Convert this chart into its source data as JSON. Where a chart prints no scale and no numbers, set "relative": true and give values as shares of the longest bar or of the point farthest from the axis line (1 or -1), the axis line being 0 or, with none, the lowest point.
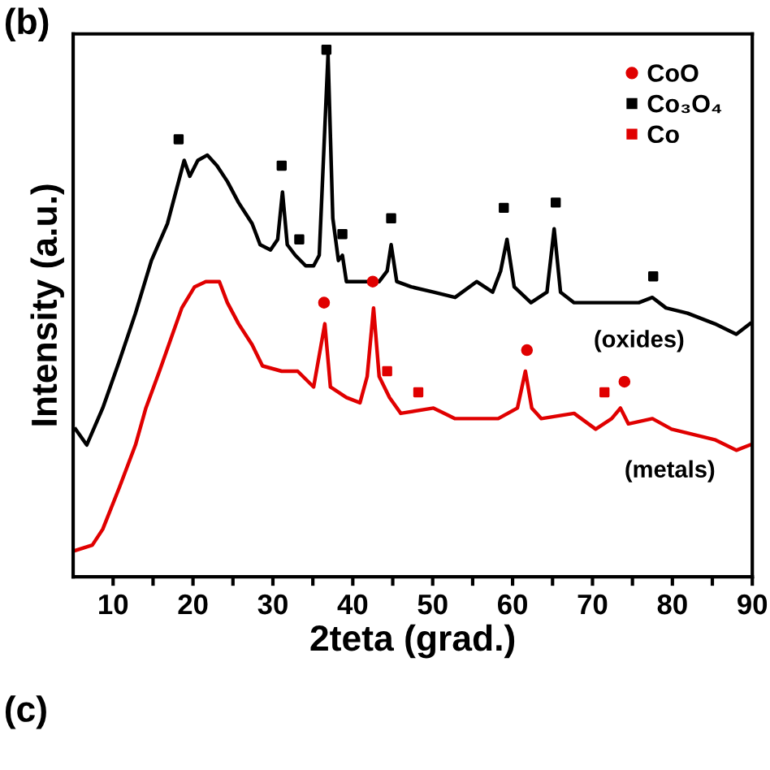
{
  "chart_data": {
    "type": "line",
    "title": "(b)",
    "xlabel": "2teta (grad.)",
    "ylabel": "Intensity (a.u.)",
    "relative": true,
    "xlim": [
      5,
      90
    ],
    "xticks": [
      {
        "value": 10,
        "label": "10"
      },
      {
        "value": 15,
        "label": null
      },
      {
        "value": 20,
        "label": "20"
      },
      {
        "value": 25,
        "label": null
      },
      {
        "value": 30,
        "label": "30"
      },
      {
        "value": 35,
        "label": null
      },
      {
        "value": 40,
        "label": "40"
      },
      {
        "value": 45,
        "label": null
      },
      {
        "value": 50,
        "label": "50"
      },
      {
        "value": 55,
        "label": null
      },
      {
        "value": 60,
        "label": "60"
      },
      {
        "value": 65,
        "label": null
      },
      {
        "value": 70,
        "label": "70"
      },
      {
        "value": 75,
        "label": null
      },
      {
        "value": 80,
        "label": "80"
      },
      {
        "value": 85,
        "label": null
      },
      {
        "value": 90,
        "label": "90"
      }
    ],
    "tick_labels": "x",
    "grid": false,
    "legend": "top right",
    "series": [
      {
        "color": "#000000",
        "x": [
          5.3,
          6.7,
          8.7,
          10.8,
          12.8,
          14.8,
          16.8,
          18.2,
          18.9,
          19.6,
          20.6,
          21.8,
          23.0,
          24.3,
          25.7,
          27.4,
          28.4,
          29.7,
          30.6,
          31.2,
          31.8,
          32.8,
          34.1,
          35.1,
          35.8,
          36.9,
          37.5,
          38.2,
          38.7,
          39.2,
          40.6,
          43.3,
          44.3,
          44.8,
          45.5,
          47.3,
          50.1,
          52.8,
          55.5,
          57.5,
          58.5,
          59.3,
          60.2,
          62.3,
          64.3,
          65.2,
          66.0,
          67.7,
          70.4,
          73.1,
          75.8,
          77.5,
          79.2,
          81.9,
          85.3,
          88.0,
          89.7
        ],
        "values": [
          0.28,
          0.25,
          0.32,
          0.41,
          0.5,
          0.6,
          0.67,
          0.75,
          0.79,
          0.76,
          0.79,
          0.8,
          0.78,
          0.75,
          0.71,
          0.67,
          0.63,
          0.62,
          0.64,
          0.73,
          0.63,
          0.61,
          0.59,
          0.59,
          0.61,
          0.99,
          0.68,
          0.6,
          0.61,
          0.56,
          0.56,
          0.56,
          0.58,
          0.63,
          0.56,
          0.55,
          0.54,
          0.53,
          0.56,
          0.54,
          0.58,
          0.64,
          0.55,
          0.52,
          0.54,
          0.66,
          0.54,
          0.52,
          0.52,
          0.52,
          0.52,
          0.53,
          0.51,
          0.5,
          0.48,
          0.46,
          0.48
        ]
      },
      {
        "color": "#e00000",
        "x": [
          5.3,
          7.4,
          8.7,
          10.8,
          12.8,
          14.1,
          15.8,
          17.2,
          18.6,
          20.2,
          21.6,
          23.3,
          24.3,
          25.7,
          27.4,
          28.7,
          31.1,
          33.1,
          35.1,
          36.5,
          37.2,
          39.2,
          40.9,
          41.8,
          42.6,
          43.3,
          44.6,
          46.0,
          50.1,
          52.8,
          55.5,
          58.2,
          60.6,
          61.6,
          62.4,
          63.6,
          67.7,
          70.4,
          72.4,
          73.5,
          74.5,
          77.5,
          79.9,
          82.6,
          85.3,
          88.0,
          89.7
        ],
        "values": [
          0.05,
          0.06,
          0.09,
          0.17,
          0.25,
          0.32,
          0.39,
          0.45,
          0.51,
          0.55,
          0.56,
          0.56,
          0.52,
          0.48,
          0.44,
          0.4,
          0.39,
          0.39,
          0.36,
          0.48,
          0.36,
          0.34,
          0.33,
          0.38,
          0.51,
          0.38,
          0.34,
          0.31,
          0.32,
          0.3,
          0.3,
          0.3,
          0.32,
          0.39,
          0.32,
          0.3,
          0.31,
          0.28,
          0.3,
          0.32,
          0.29,
          0.3,
          0.28,
          0.27,
          0.26,
          0.24,
          0.25
        ]
      },
      {
        "type": "scatter",
        "name": "CoO",
        "color": "#e00000",
        "marker": "circle",
        "x": [
          36.4,
          42.5,
          61.8,
          74.0
        ],
        "values": [
          0.52,
          0.56,
          0.43,
          0.37
        ]
      },
      {
        "type": "scatter",
        "name": "Co₃O₄",
        "color": "#000000",
        "marker": "square",
        "x": [
          18.2,
          31.1,
          33.3,
          36.7,
          38.7,
          44.8,
          58.9,
          65.4,
          77.6
        ],
        "values": [
          0.83,
          0.78,
          0.64,
          1.0,
          0.65,
          0.68,
          0.7,
          0.71,
          0.57
        ]
      },
      {
        "type": "scatter",
        "name": "Co",
        "color": "#e00000",
        "marker": "square",
        "x": [
          44.3,
          48.2,
          71.5
        ],
        "values": [
          0.39,
          0.35,
          0.35
        ]
      }
    ],
    "annotations": [
      "(oxides)",
      "(metals)",
      "(c)"
    ]
  }
}
